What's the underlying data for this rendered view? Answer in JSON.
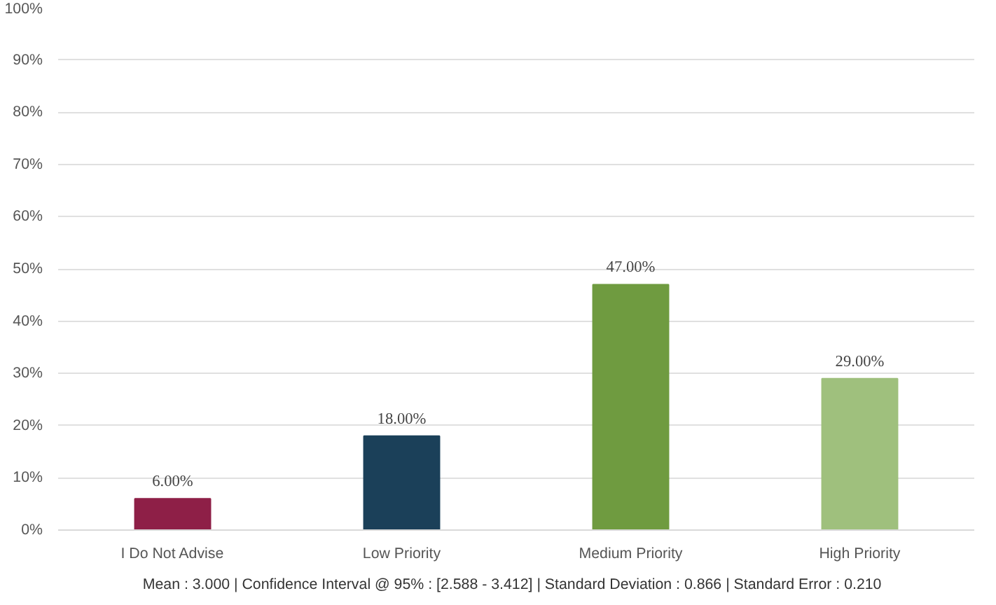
{
  "chart_data": {
    "type": "bar",
    "categories": [
      "I Do Not Advise",
      "Low Priority",
      "Medium Priority",
      "High Priority"
    ],
    "values": [
      6,
      18,
      47,
      29
    ],
    "colors": [
      "#8e1f47",
      "#1b4059",
      "#6f9b40",
      "#9fc07d"
    ],
    "value_labels": [
      "6.00%",
      "18.00%",
      "47.00%",
      "29.00%"
    ],
    "ylim": [
      0,
      100
    ],
    "yticks": [
      {
        "value": 0,
        "label": "0%"
      },
      {
        "value": 10,
        "label": "10%"
      },
      {
        "value": 20,
        "label": "20%"
      },
      {
        "value": 30,
        "label": "30%"
      },
      {
        "value": 40,
        "label": "40%"
      },
      {
        "value": 50,
        "label": "50%"
      },
      {
        "value": 60,
        "label": "60%"
      },
      {
        "value": 70,
        "label": "70%"
      },
      {
        "value": 80,
        "label": "80%"
      },
      {
        "value": 90,
        "label": "90%"
      },
      {
        "value": 100,
        "label": "100%"
      }
    ],
    "grid": "y",
    "annotations": [
      "Mean : 3.000 | Confidence Interval @ 95% : [2.588   - 3.412] | Standard Deviation : 0.866 | Standard Error : 0.210"
    ]
  }
}
